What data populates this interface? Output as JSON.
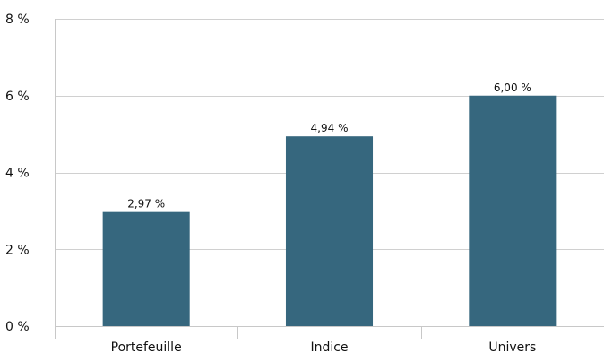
{
  "chart_data": {
    "type": "bar",
    "categories": [
      "Portefeuille",
      "Indice",
      "Univers"
    ],
    "values": [
      2.97,
      4.94,
      6.0
    ],
    "value_labels": [
      "2,97 %",
      "4,94 %",
      "6,00 %"
    ],
    "yticks": [
      0,
      2,
      4,
      6,
      8
    ],
    "ytick_labels": [
      "0 %",
      "2 %",
      "4 %",
      "6 %",
      "8 %"
    ],
    "ylim": [
      0,
      8
    ],
    "grid": true,
    "bar_color": "#36677e",
    "title": "",
    "xlabel": "",
    "ylabel": ""
  }
}
